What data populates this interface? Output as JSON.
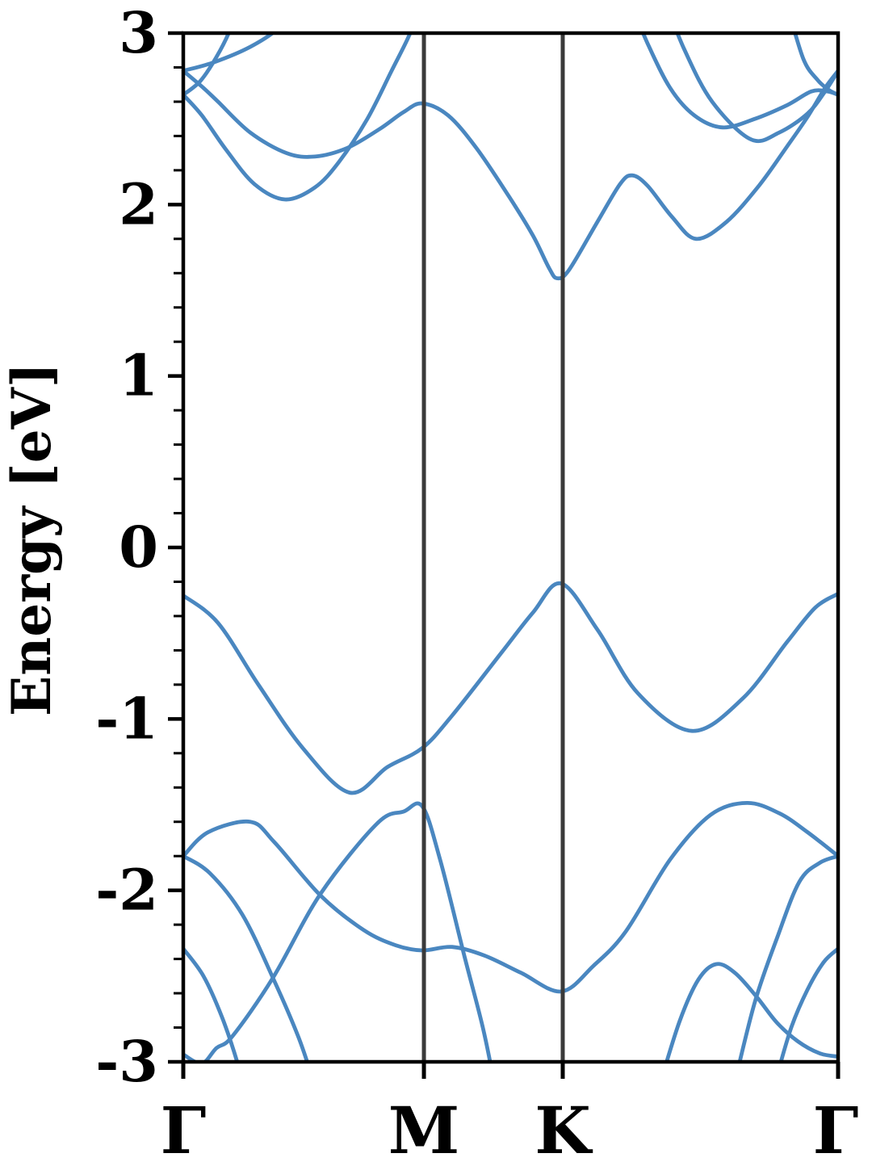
{
  "chart_data": {
    "type": "line",
    "title": "",
    "xlabel": "",
    "ylabel": "Energy [eV]",
    "ylim": [
      -3,
      3
    ],
    "yticks": [
      3,
      2,
      1,
      0,
      -1,
      -2,
      -3
    ],
    "ytick_labels": [
      "3",
      "2",
      "1",
      "0",
      "-1",
      "-2",
      "-3"
    ],
    "minor_tick_step": 0.2,
    "grid": false,
    "legend": "none",
    "x_path_labels": [
      "Γ",
      "M",
      "K",
      "Γ"
    ],
    "x_path_positions": [
      0.0,
      0.3675,
      0.5795,
      1.0
    ],
    "kpoint_guide_positions": [
      0.3675,
      0.5795
    ],
    "band_color": "#4a87c0",
    "kpoint_line_color": "#3a3a3a",
    "frame_color": "#000000",
    "series": [
      {
        "name": "valence-band-1",
        "points": [
          [
            0.0,
            -0.28
          ],
          [
            0.053,
            -0.44
          ],
          [
            0.1147,
            -0.8
          ],
          [
            0.1825,
            -1.17
          ],
          [
            0.254,
            -1.43
          ],
          [
            0.312,
            -1.28
          ],
          [
            0.365,
            -1.17
          ],
          [
            0.4106,
            -0.98
          ],
          [
            0.4846,
            -0.62
          ],
          [
            0.5339,
            -0.38
          ],
          [
            0.5771,
            -0.21
          ],
          [
            0.6326,
            -0.48
          ],
          [
            0.6942,
            -0.85
          ],
          [
            0.7768,
            -1.07
          ],
          [
            0.8545,
            -0.88
          ],
          [
            0.9223,
            -0.55
          ],
          [
            0.9655,
            -0.35
          ],
          [
            1.0,
            -0.27
          ]
        ]
      },
      {
        "name": "valence-band-2",
        "points": [
          [
            0.0012,
            -2.96
          ],
          [
            0.0284,
            -3.01
          ],
          [
            0.0506,
            -2.92
          ],
          [
            0.0752,
            -2.85
          ],
          [
            0.1369,
            -2.51
          ],
          [
            0.2096,
            -2.02
          ],
          [
            0.2959,
            -1.61
          ],
          [
            0.3366,
            -1.54
          ],
          [
            0.365,
            -1.51
          ],
          [
            0.3921,
            -1.82
          ],
          [
            0.4291,
            -2.38
          ],
          [
            0.4575,
            -2.8
          ],
          [
            0.4747,
            -3.12
          ]
        ]
      },
      {
        "name": "valence-band-3",
        "points": [
          [
            0.0,
            -1.8
          ],
          [
            0.0382,
            -1.66
          ],
          [
            0.1023,
            -1.6
          ],
          [
            0.1393,
            -1.72
          ],
          [
            0.2096,
            -2.03
          ],
          [
            0.275,
            -2.23
          ],
          [
            0.3243,
            -2.32
          ],
          [
            0.365,
            -2.35
          ],
          [
            0.4106,
            -2.33
          ],
          [
            0.4599,
            -2.38
          ],
          [
            0.5154,
            -2.48
          ],
          [
            0.5771,
            -2.59
          ],
          [
            0.6264,
            -2.44
          ],
          [
            0.6757,
            -2.24
          ],
          [
            0.7435,
            -1.82
          ],
          [
            0.8052,
            -1.56
          ],
          [
            0.8607,
            -1.49
          ],
          [
            0.91,
            -1.55
          ],
          [
            0.9531,
            -1.66
          ],
          [
            1.0,
            -1.8
          ]
        ]
      },
      {
        "name": "valence-band-4",
        "points": [
          [
            0.0,
            -1.8
          ],
          [
            0.0407,
            -1.9
          ],
          [
            0.09,
            -2.14
          ],
          [
            0.1369,
            -2.51
          ],
          [
            0.1763,
            -2.86
          ],
          [
            0.201,
            -3.14
          ]
        ]
      },
      {
        "name": "valence-band-5",
        "points": [
          [
            0.0,
            -2.34
          ],
          [
            0.0308,
            -2.5
          ],
          [
            0.0592,
            -2.74
          ],
          [
            0.0838,
            -3.02
          ],
          [
            0.09,
            -3.14
          ]
        ]
      },
      {
        "name": "valence-band-6",
        "points": [
          [
            0.7287,
            -3.12
          ],
          [
            0.7583,
            -2.76
          ],
          [
            0.7867,
            -2.52
          ],
          [
            0.8138,
            -2.43
          ],
          [
            0.8422,
            -2.48
          ],
          [
            0.8755,
            -2.62
          ],
          [
            0.9063,
            -2.77
          ],
          [
            0.9383,
            -2.88
          ],
          [
            0.9716,
            -2.95
          ],
          [
            1.0,
            -2.97
          ]
        ]
      },
      {
        "name": "valence-band-7",
        "points": [
          [
            0.8422,
            -3.12
          ],
          [
            0.873,
            -2.65
          ],
          [
            0.9075,
            -2.27
          ],
          [
            0.9408,
            -1.95
          ],
          [
            0.9716,
            -1.84
          ],
          [
            1.0,
            -1.8
          ]
        ]
      },
      {
        "name": "valence-band-8",
        "points": [
          [
            0.9038,
            -3.12
          ],
          [
            0.9285,
            -2.8
          ],
          [
            0.9531,
            -2.58
          ],
          [
            0.9778,
            -2.42
          ],
          [
            1.0,
            -2.34
          ]
        ]
      },
      {
        "name": "conduction-band-1",
        "points": [
          [
            0.0,
            2.78
          ],
          [
            0.0308,
            2.68
          ],
          [
            0.053,
            2.6
          ],
          [
            0.1023,
            2.42
          ],
          [
            0.1578,
            2.3
          ],
          [
            0.201,
            2.28
          ],
          [
            0.2503,
            2.33
          ],
          [
            0.2996,
            2.44
          ],
          [
            0.3366,
            2.54
          ],
          [
            0.365,
            2.59
          ],
          [
            0.4044,
            2.52
          ],
          [
            0.4476,
            2.33
          ],
          [
            0.4969,
            2.05
          ],
          [
            0.5339,
            1.82
          ],
          [
            0.5586,
            1.63
          ],
          [
            0.5709,
            1.57
          ],
          [
            0.5894,
            1.62
          ],
          [
            0.6326,
            1.9
          ],
          [
            0.6671,
            2.12
          ],
          [
            0.6856,
            2.17
          ],
          [
            0.709,
            2.11
          ],
          [
            0.746,
            1.93
          ],
          [
            0.783,
            1.8
          ],
          [
            0.8298,
            1.9
          ],
          [
            0.8791,
            2.11
          ],
          [
            0.9223,
            2.34
          ],
          [
            0.9531,
            2.51
          ],
          [
            0.9802,
            2.68
          ],
          [
            1.0,
            2.78
          ]
        ]
      },
      {
        "name": "conduction-band-2",
        "points": [
          [
            0.0,
            2.64
          ],
          [
            0.0284,
            2.52
          ],
          [
            0.0653,
            2.32
          ],
          [
            0.1085,
            2.12
          ],
          [
            0.1554,
            2.03
          ],
          [
            0.201,
            2.1
          ],
          [
            0.238,
            2.25
          ],
          [
            0.2811,
            2.5
          ],
          [
            0.3181,
            2.78
          ],
          [
            0.3465,
            3.0
          ],
          [
            0.3588,
            3.16
          ]
        ]
      },
      {
        "name": "conduction-band-3",
        "points": [
          [
            0.0,
            2.64
          ],
          [
            0.0259,
            2.72
          ],
          [
            0.0506,
            2.86
          ],
          [
            0.0715,
            3.02
          ],
          [
            0.0826,
            3.16
          ]
        ]
      },
      {
        "name": "conduction-band-4",
        "points": [
          [
            0.0,
            2.78
          ],
          [
            0.0469,
            2.83
          ],
          [
            0.1023,
            2.92
          ],
          [
            0.1455,
            3.03
          ],
          [
            0.1665,
            3.16
          ]
        ]
      },
      {
        "name": "conduction-band-5",
        "points": [
          [
            0.6856,
            3.16
          ],
          [
            0.709,
            2.94
          ],
          [
            0.7435,
            2.68
          ],
          [
            0.7805,
            2.52
          ],
          [
            0.8237,
            2.45
          ],
          [
            0.873,
            2.5
          ],
          [
            0.9223,
            2.58
          ],
          [
            0.9593,
            2.66
          ],
          [
            0.984,
            2.66
          ],
          [
            1.0,
            2.64
          ]
        ]
      },
      {
        "name": "conduction-band-6",
        "points": [
          [
            0.7386,
            3.16
          ],
          [
            0.7657,
            2.9
          ],
          [
            0.8076,
            2.6
          ],
          [
            0.8668,
            2.38
          ],
          [
            0.91,
            2.42
          ],
          [
            0.9531,
            2.53
          ],
          [
            0.9802,
            2.66
          ],
          [
            1.0,
            2.78
          ]
        ]
      },
      {
        "name": "conduction-band-7",
        "points": [
          [
            0.9223,
            3.16
          ],
          [
            0.9469,
            2.85
          ],
          [
            0.9679,
            2.73
          ],
          [
            0.9852,
            2.67
          ],
          [
            1.0,
            2.64
          ]
        ]
      }
    ]
  }
}
